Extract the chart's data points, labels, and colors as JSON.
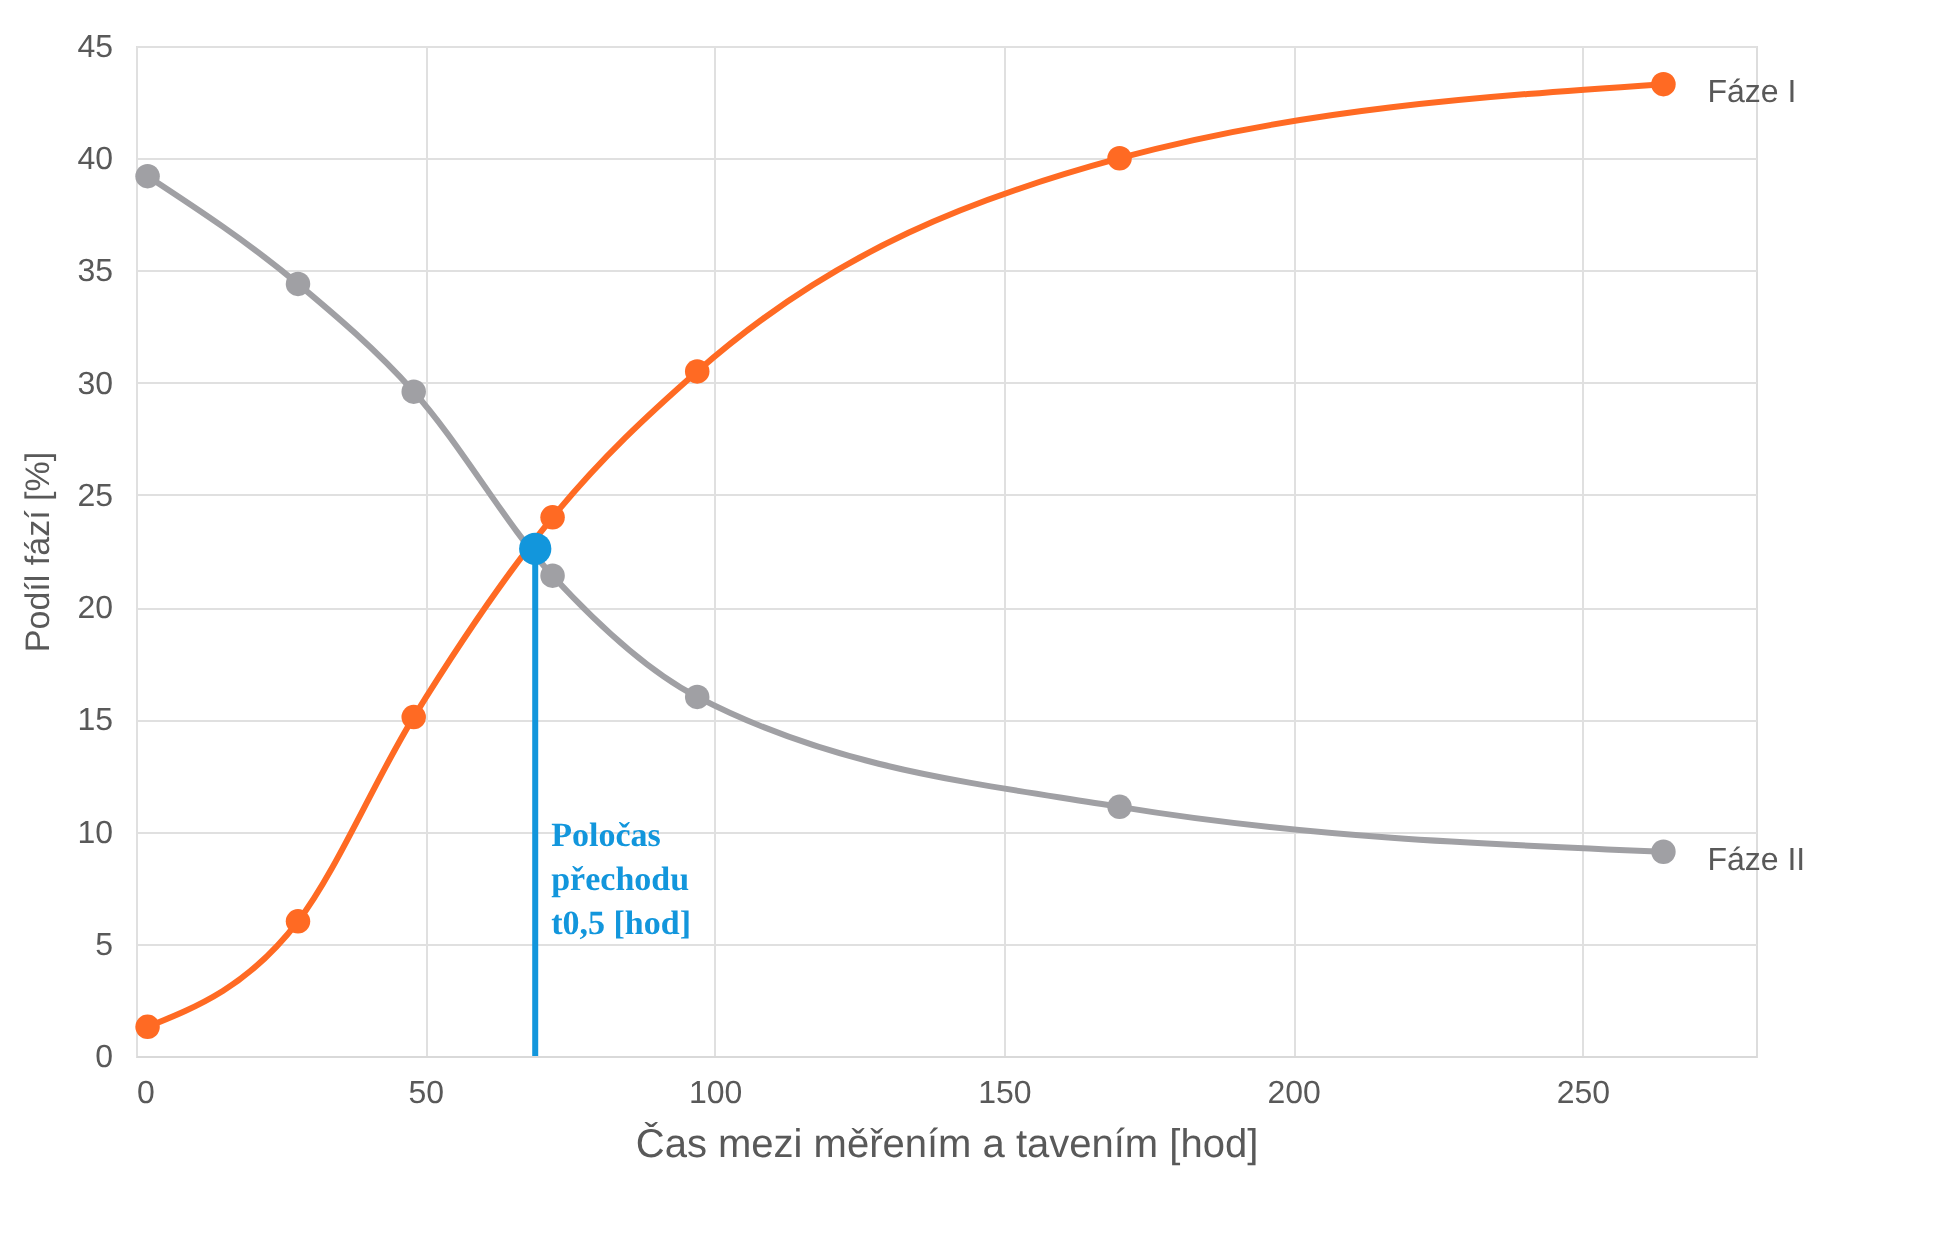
{
  "chart_data": {
    "type": "line",
    "xlabel": "Čas mezi měřením a tavením [hod]",
    "ylabel": "Podíl fází [%]",
    "xlim": [
      0,
      280
    ],
    "xticks": [
      0,
      50,
      100,
      150,
      200,
      250
    ],
    "ylim": [
      0,
      45
    ],
    "yticks": [
      0,
      5,
      10,
      15,
      20,
      25,
      30,
      35,
      40,
      45
    ],
    "grid": true,
    "marker": "circle",
    "line_style": "solid",
    "series": [
      {
        "name": "Fáze I",
        "color": "#ff6a23",
        "x": [
          2,
          28,
          48,
          72,
          97,
          170,
          264
        ],
        "values": [
          1.3,
          6.0,
          15.1,
          24.0,
          30.5,
          40.0,
          43.3
        ]
      },
      {
        "name": "Fáze II",
        "color": "#a0a0a4",
        "x": [
          2,
          28,
          48,
          72,
          97,
          170,
          264
        ],
        "values": [
          39.2,
          34.4,
          29.6,
          21.4,
          16.0,
          11.1,
          9.1
        ]
      },
      {
        "type": "line",
        "color": "#1296dc",
        "marker": "none",
        "x": [
          69,
          69
        ],
        "values": [
          0,
          22.6
        ]
      },
      {
        "type": "scatter",
        "color": "#1296dc",
        "x": [
          69
        ],
        "values": [
          22.6
        ]
      }
    ],
    "annotations": [
      "Poločas\npřechodu\nt0,5 [hod]"
    ]
  }
}
